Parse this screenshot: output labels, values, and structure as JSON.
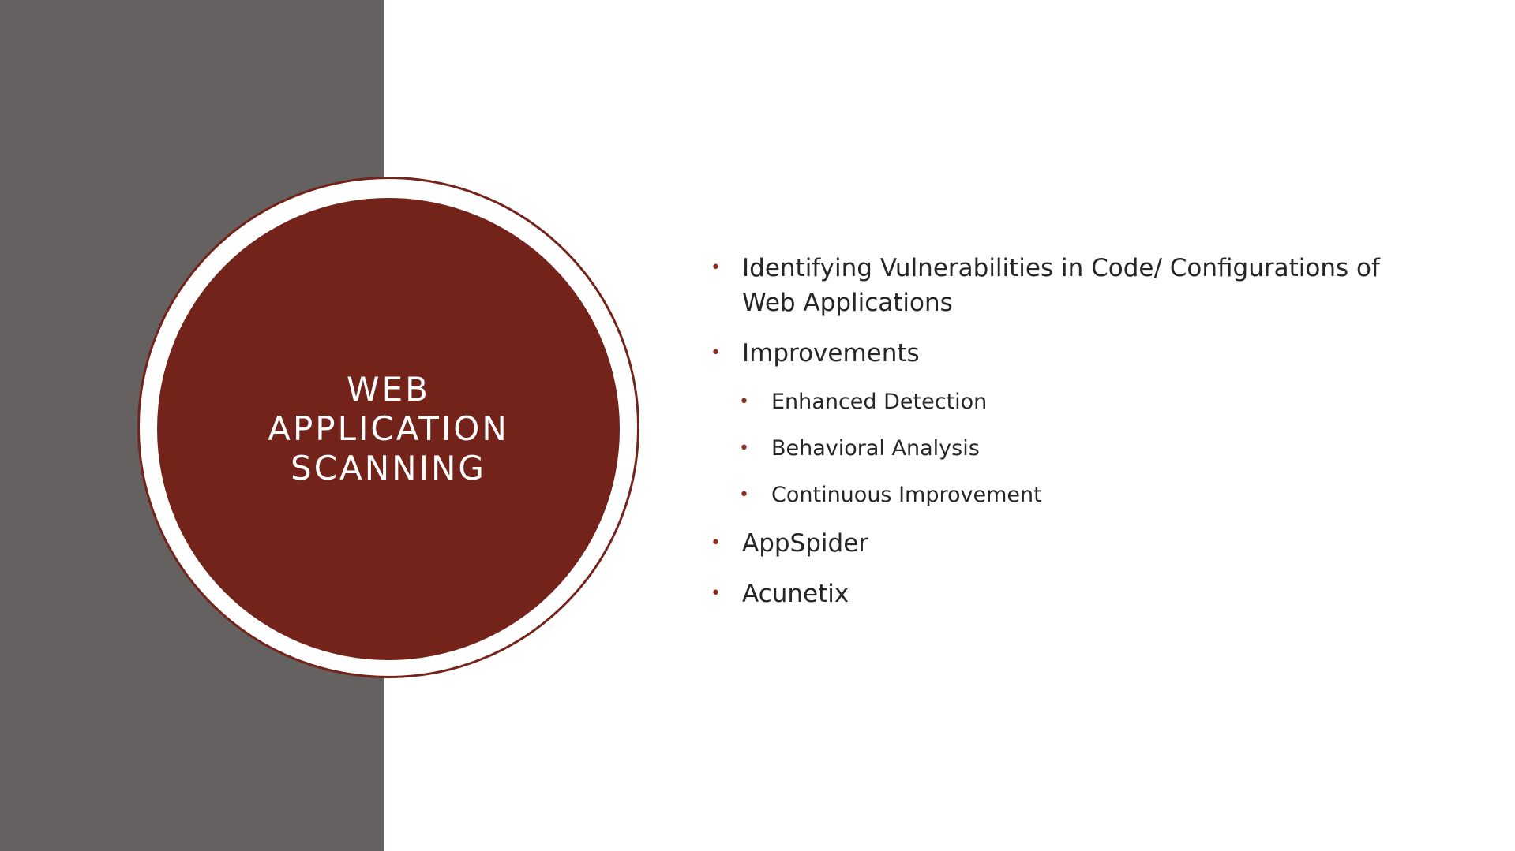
{
  "slide": {
    "title_lines": [
      "WEB",
      "APPLICATION",
      "SCANNING"
    ],
    "bullets": [
      {
        "text": "Identifying Vulnerabilities in Code/ Configurations of Web Applications"
      },
      {
        "text": "Improvements"
      },
      {
        "text": "Enhanced Detection"
      },
      {
        "text": "Behavioral Analysis"
      },
      {
        "text": "Continuous Improvement"
      },
      {
        "text": "AppSpider"
      },
      {
        "text": "Acunetix"
      }
    ]
  },
  "colors": {
    "side_panel": "#656161",
    "accent": "#74231a",
    "bullet": "#8f2d22",
    "text": "#262626",
    "background": "#ffffff"
  }
}
